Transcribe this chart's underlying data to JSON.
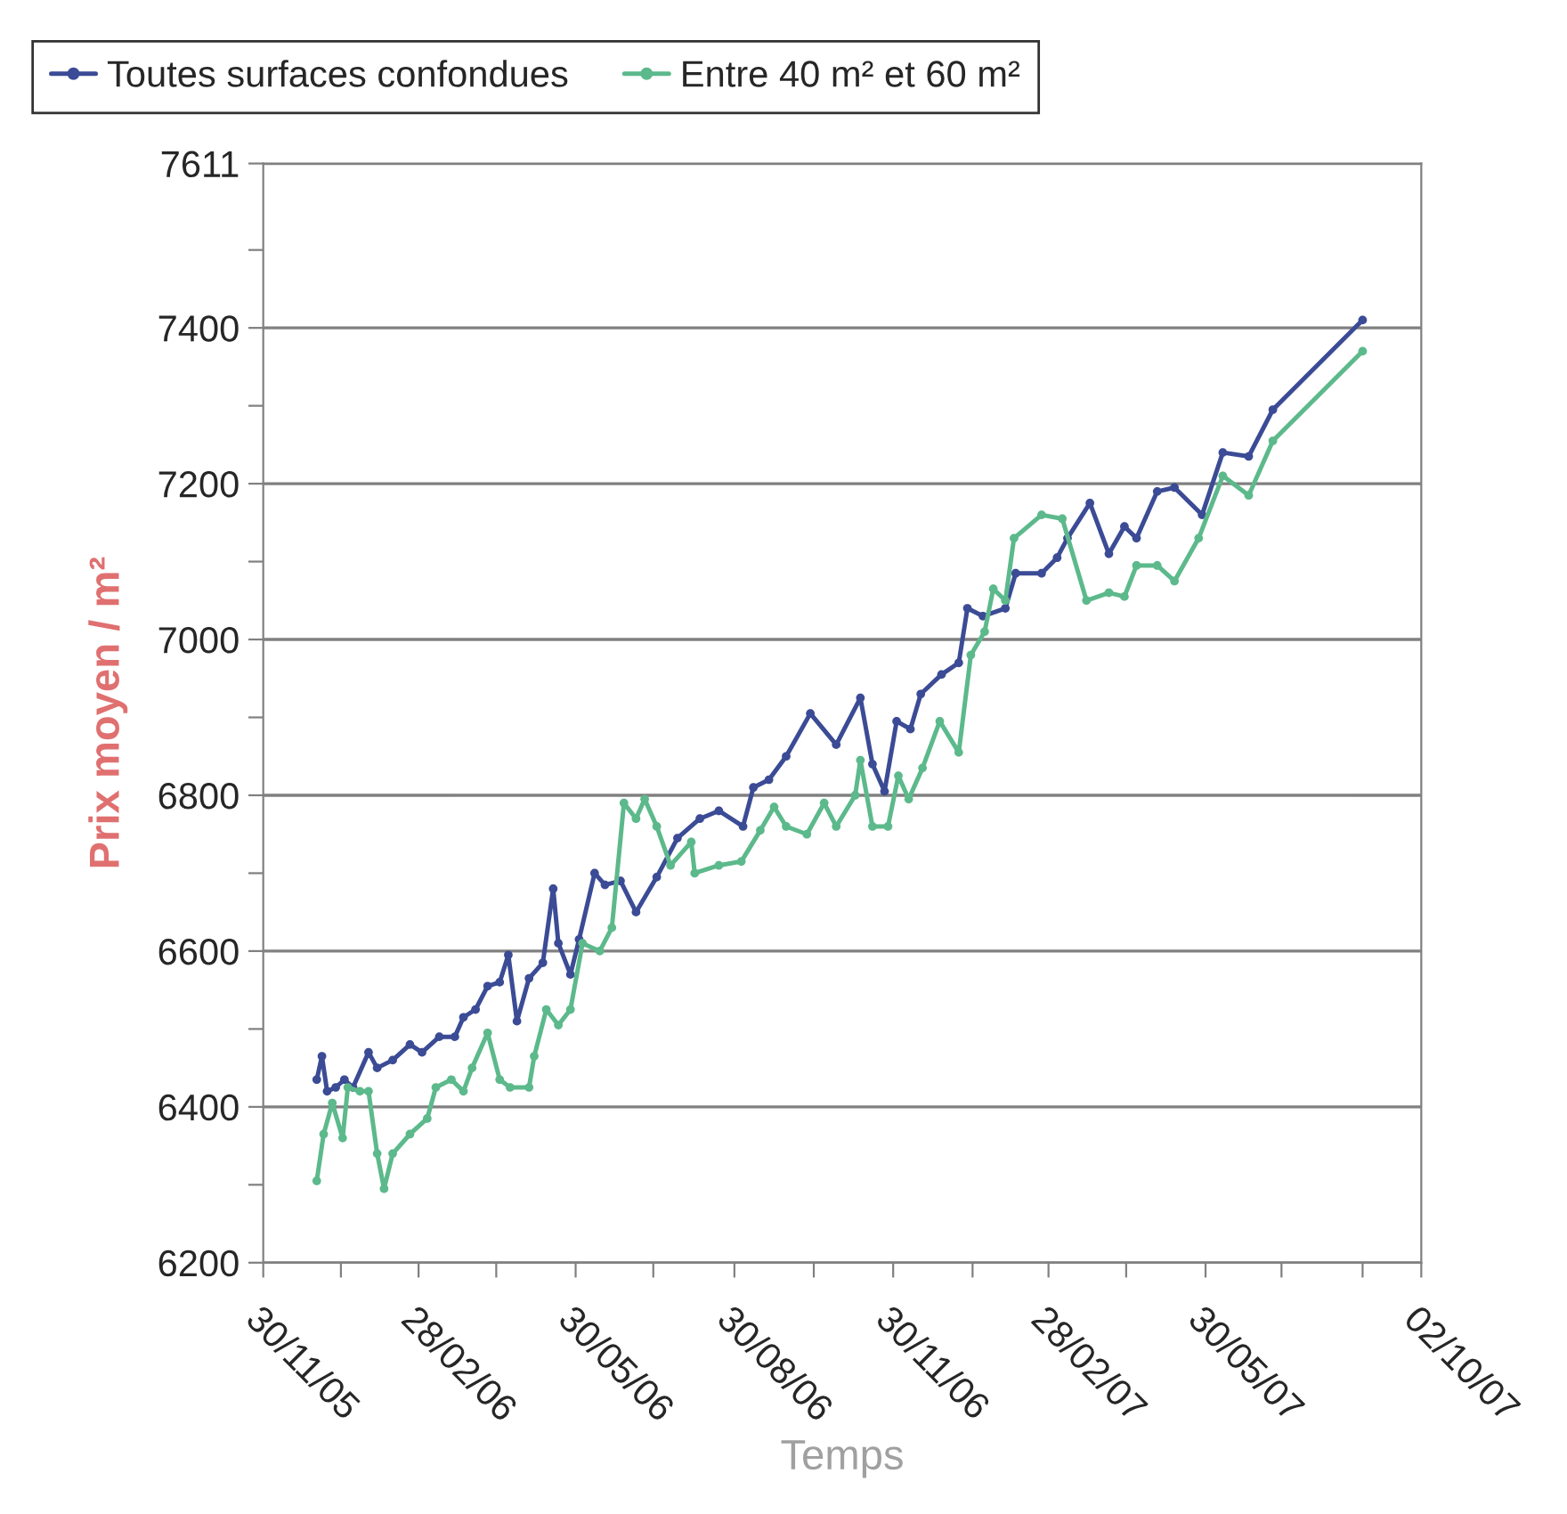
{
  "chart_data": {
    "type": "line",
    "xlabel": "Temps",
    "ylabel": "Prix moyen / m²",
    "legend": "top",
    "grid": "y",
    "marker": "circle",
    "line_style": "solid",
    "xlim": [
      "2005-11-30",
      "2007-10-02"
    ],
    "xticks": [
      {
        "value": "2005-11-30",
        "label": "30/11/05"
      },
      {
        "value": "2006-01-14",
        "label": null
      },
      {
        "value": "2006-02-28",
        "label": "28/02/06"
      },
      {
        "value": "2006-04-14",
        "label": null
      },
      {
        "value": "2006-05-30",
        "label": "30/05/06"
      },
      {
        "value": "2006-07-14",
        "label": null
      },
      {
        "value": "2006-08-30",
        "label": "30/08/06"
      },
      {
        "value": "2006-10-15",
        "label": null
      },
      {
        "value": "2006-11-30",
        "label": "30/11/06"
      },
      {
        "value": "2007-01-15",
        "label": null
      },
      {
        "value": "2007-02-28",
        "label": "28/02/07"
      },
      {
        "value": "2007-04-14",
        "label": null
      },
      {
        "value": "2007-05-30",
        "label": "30/05/07"
      },
      {
        "value": "2007-07-13",
        "label": null
      },
      {
        "value": "2007-08-29",
        "label": null
      },
      {
        "value": "2007-10-02",
        "label": "02/10/07"
      }
    ],
    "ylim": [
      6200,
      7611
    ],
    "yticks": [
      6200,
      {
        "value": 6300,
        "label": null
      },
      6400,
      {
        "value": 6500,
        "label": null
      },
      6600,
      {
        "value": 6700,
        "label": null
      },
      6800,
      {
        "value": 6900,
        "label": null
      },
      7000,
      {
        "value": 7100,
        "label": null
      },
      7200,
      {
        "value": 7300,
        "label": null
      },
      7400,
      {
        "value": 7500,
        "label": null
      },
      7611
    ],
    "series": [
      {
        "name": "Toutes surfaces confondues",
        "color": "#3b4b95",
        "x": [
          "2005-12-31",
          "2006-01-03",
          "2006-01-06",
          "2006-01-11",
          "2006-01-16",
          "2006-01-21",
          "2006-01-30",
          "2006-02-04",
          "2006-02-13",
          "2006-02-23",
          "2006-03-02",
          "2006-03-12",
          "2006-03-21",
          "2006-03-26",
          "2006-04-02",
          "2006-04-09",
          "2006-04-16",
          "2006-04-21",
          "2006-04-26",
          "2006-05-03",
          "2006-05-11",
          "2006-05-17",
          "2006-05-20",
          "2006-05-27",
          "2006-06-01",
          "2006-06-10",
          "2006-06-16",
          "2006-06-25",
          "2006-07-04",
          "2006-07-16",
          "2006-07-28",
          "2006-08-10",
          "2006-08-21",
          "2006-09-04",
          "2006-09-10",
          "2006-09-19",
          "2006-09-29",
          "2006-10-13",
          "2006-10-28",
          "2006-11-11",
          "2006-11-18",
          "2006-11-25",
          "2006-12-02",
          "2006-12-10",
          "2006-12-16",
          "2006-12-28",
          "2007-01-07",
          "2007-01-12",
          "2007-01-21",
          "2007-02-03",
          "2007-02-09",
          "2007-02-24",
          "2007-03-05",
          "2007-03-11",
          "2007-03-24",
          "2007-04-04",
          "2007-04-13",
          "2007-04-20",
          "2007-05-02",
          "2007-05-12",
          "2007-05-28",
          "2007-06-09",
          "2007-06-24",
          "2007-07-08",
          "2007-08-29"
        ],
        "values": [
          6435,
          6465,
          6420,
          6425,
          6435,
          6425,
          6470,
          6450,
          6460,
          6480,
          6470,
          6490,
          6490,
          6515,
          6525,
          6555,
          6560,
          6595,
          6510,
          6565,
          6585,
          6680,
          6610,
          6570,
          6615,
          6700,
          6685,
          6690,
          6650,
          6695,
          6745,
          6770,
          6780,
          6760,
          6810,
          6820,
          6850,
          6905,
          6865,
          6925,
          6840,
          6805,
          6895,
          6885,
          6930,
          6955,
          6970,
          7040,
          7030,
          7040,
          7085,
          7085,
          7105,
          7130,
          7175,
          7110,
          7145,
          7130,
          7190,
          7195,
          7160,
          7240,
          7235,
          7295,
          7410
        ]
      },
      {
        "name": "Entre 40 m² et 60 m²",
        "color": "#5cb98b",
        "x": [
          "2005-12-31",
          "2006-01-04",
          "2006-01-09",
          "2006-01-15",
          "2006-01-18",
          "2006-01-25",
          "2006-01-30",
          "2006-02-04",
          "2006-02-08",
          "2006-02-13",
          "2006-02-23",
          "2006-03-05",
          "2006-03-10",
          "2006-03-19",
          "2006-03-26",
          "2006-03-31",
          "2006-04-09",
          "2006-04-16",
          "2006-04-22",
          "2006-05-03",
          "2006-05-06",
          "2006-05-13",
          "2006-05-20",
          "2006-05-27",
          "2006-06-03",
          "2006-06-13",
          "2006-06-20",
          "2006-06-27",
          "2006-07-04",
          "2006-07-09",
          "2006-07-16",
          "2006-07-24",
          "2006-08-05",
          "2006-08-07",
          "2006-08-21",
          "2006-09-03",
          "2006-09-14",
          "2006-09-22",
          "2006-09-29",
          "2006-10-11",
          "2006-10-21",
          "2006-10-28",
          "2006-11-08",
          "2006-11-11",
          "2006-11-18",
          "2006-11-27",
          "2006-12-03",
          "2006-12-09",
          "2006-12-17",
          "2006-12-27",
          "2007-01-07",
          "2007-01-14",
          "2007-01-22",
          "2007-01-27",
          "2007-02-03",
          "2007-02-08",
          "2007-02-24",
          "2007-03-08",
          "2007-03-22",
          "2007-04-04",
          "2007-04-13",
          "2007-04-20",
          "2007-05-02",
          "2007-05-12",
          "2007-05-26",
          "2007-06-09",
          "2007-06-24",
          "2007-07-08",
          "2007-08-29"
        ],
        "values": [
          6305,
          6365,
          6405,
          6360,
          6425,
          6420,
          6420,
          6340,
          6295,
          6340,
          6365,
          6385,
          6425,
          6435,
          6420,
          6450,
          6495,
          6435,
          6425,
          6425,
          6465,
          6525,
          6505,
          6525,
          6610,
          6600,
          6630,
          6790,
          6770,
          6795,
          6760,
          6710,
          6740,
          6700,
          6710,
          6715,
          6755,
          6785,
          6760,
          6750,
          6790,
          6760,
          6800,
          6845,
          6760,
          6760,
          6825,
          6795,
          6835,
          6895,
          6855,
          6980,
          7010,
          7065,
          7050,
          7130,
          7160,
          7155,
          7050,
          7060,
          7055,
          7095,
          7095,
          7075,
          7130,
          7210,
          7185,
          7255,
          7370
        ]
      }
    ]
  }
}
